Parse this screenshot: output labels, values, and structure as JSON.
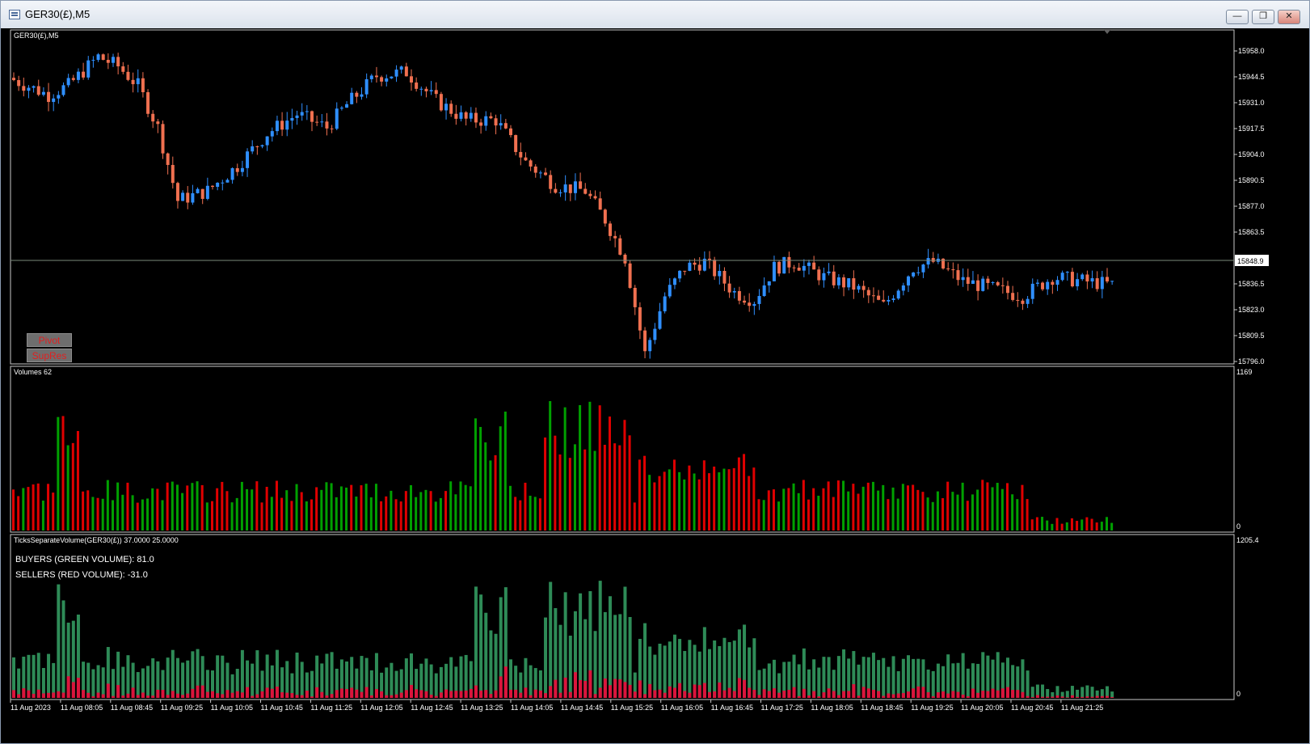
{
  "window": {
    "title": "GER30(£),M5",
    "minimize_glyph": "—",
    "restore_glyph": "❐",
    "close_glyph": "✕"
  },
  "main_chart": {
    "label": "GER30(£),M5",
    "price_ticks": [
      "15958.0",
      "15944.5",
      "15931.0",
      "15917.5",
      "15904.0",
      "15890.5",
      "15877.0",
      "15863.5",
      "15836.5",
      "15823.0",
      "15809.5",
      "15796.0"
    ],
    "current_price": "15848.9",
    "buttons": {
      "pivot": "Pivot",
      "supres": "SupRes"
    },
    "colors": {
      "bull": "#2f8fff",
      "bear": "#f07050"
    }
  },
  "volumes_panel": {
    "label": "Volumes 62",
    "scale_max": "1169",
    "scale_min": "0"
  },
  "ticks_panel": {
    "label": "TicksSeparateVolume(GER30(£)) 37.0000 25.0000",
    "buyers_text": "BUYERS (GREEN VOLUME): 81.0",
    "sellers_text": "SELLERS (RED VOLUME): -31.0",
    "scale_max": "1205.4",
    "scale_min": "0"
  },
  "time_axis": [
    "11 Aug 2023",
    "11 Aug 08:05",
    "11 Aug 08:45",
    "11 Aug 09:25",
    "11 Aug 10:05",
    "11 Aug 10:45",
    "11 Aug 11:25",
    "11 Aug 12:05",
    "11 Aug 12:45",
    "11 Aug 13:25",
    "11 Aug 14:05",
    "11 Aug 14:45",
    "11 Aug 15:25",
    "11 Aug 16:05",
    "11 Aug 16:45",
    "11 Aug 17:25",
    "11 Aug 18:05",
    "11 Aug 18:45",
    "11 Aug 19:25",
    "11 Aug 20:05",
    "11 Aug 20:45",
    "11 Aug 21:25"
  ]
}
